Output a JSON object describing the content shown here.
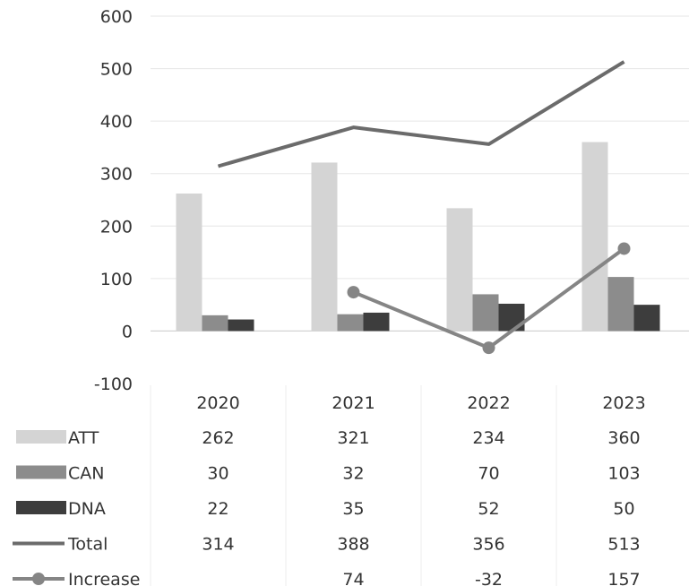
{
  "chart_data": {
    "type": "bar",
    "categories": [
      "2020",
      "2021",
      "2022",
      "2023"
    ],
    "ylim": [
      -100,
      600
    ],
    "yticks": [
      600,
      500,
      400,
      300,
      200,
      100,
      0,
      -100
    ],
    "grid": true,
    "legend_placement": "data-table-left",
    "series": [
      {
        "name": "ATT",
        "type": "bar",
        "color": "#d4d4d4",
        "values": [
          262,
          321,
          234,
          360
        ]
      },
      {
        "name": "CAN",
        "type": "bar",
        "color": "#8c8c8c",
        "values": [
          30,
          32,
          70,
          103
        ]
      },
      {
        "name": "DNA",
        "type": "bar",
        "color": "#3d3d3d",
        "values": [
          22,
          35,
          52,
          50
        ]
      },
      {
        "name": "Total",
        "type": "line",
        "color": "#6b6b6b",
        "values": [
          314,
          388,
          356,
          513
        ]
      },
      {
        "name": "Increase",
        "type": "line-marker",
        "color": "#858585",
        "values": [
          null,
          74,
          -32,
          157
        ]
      }
    ],
    "table": {
      "rows": [
        {
          "label": "ATT",
          "cells": [
            "262",
            "321",
            "234",
            "360"
          ]
        },
        {
          "label": "CAN",
          "cells": [
            "30",
            "32",
            "70",
            "103"
          ]
        },
        {
          "label": "DNA",
          "cells": [
            "22",
            "35",
            "52",
            "50"
          ]
        },
        {
          "label": "Total",
          "cells": [
            "314",
            "388",
            "356",
            "513"
          ]
        },
        {
          "label": "Increase",
          "cells": [
            "",
            "74",
            "-32",
            "157"
          ]
        }
      ]
    }
  }
}
